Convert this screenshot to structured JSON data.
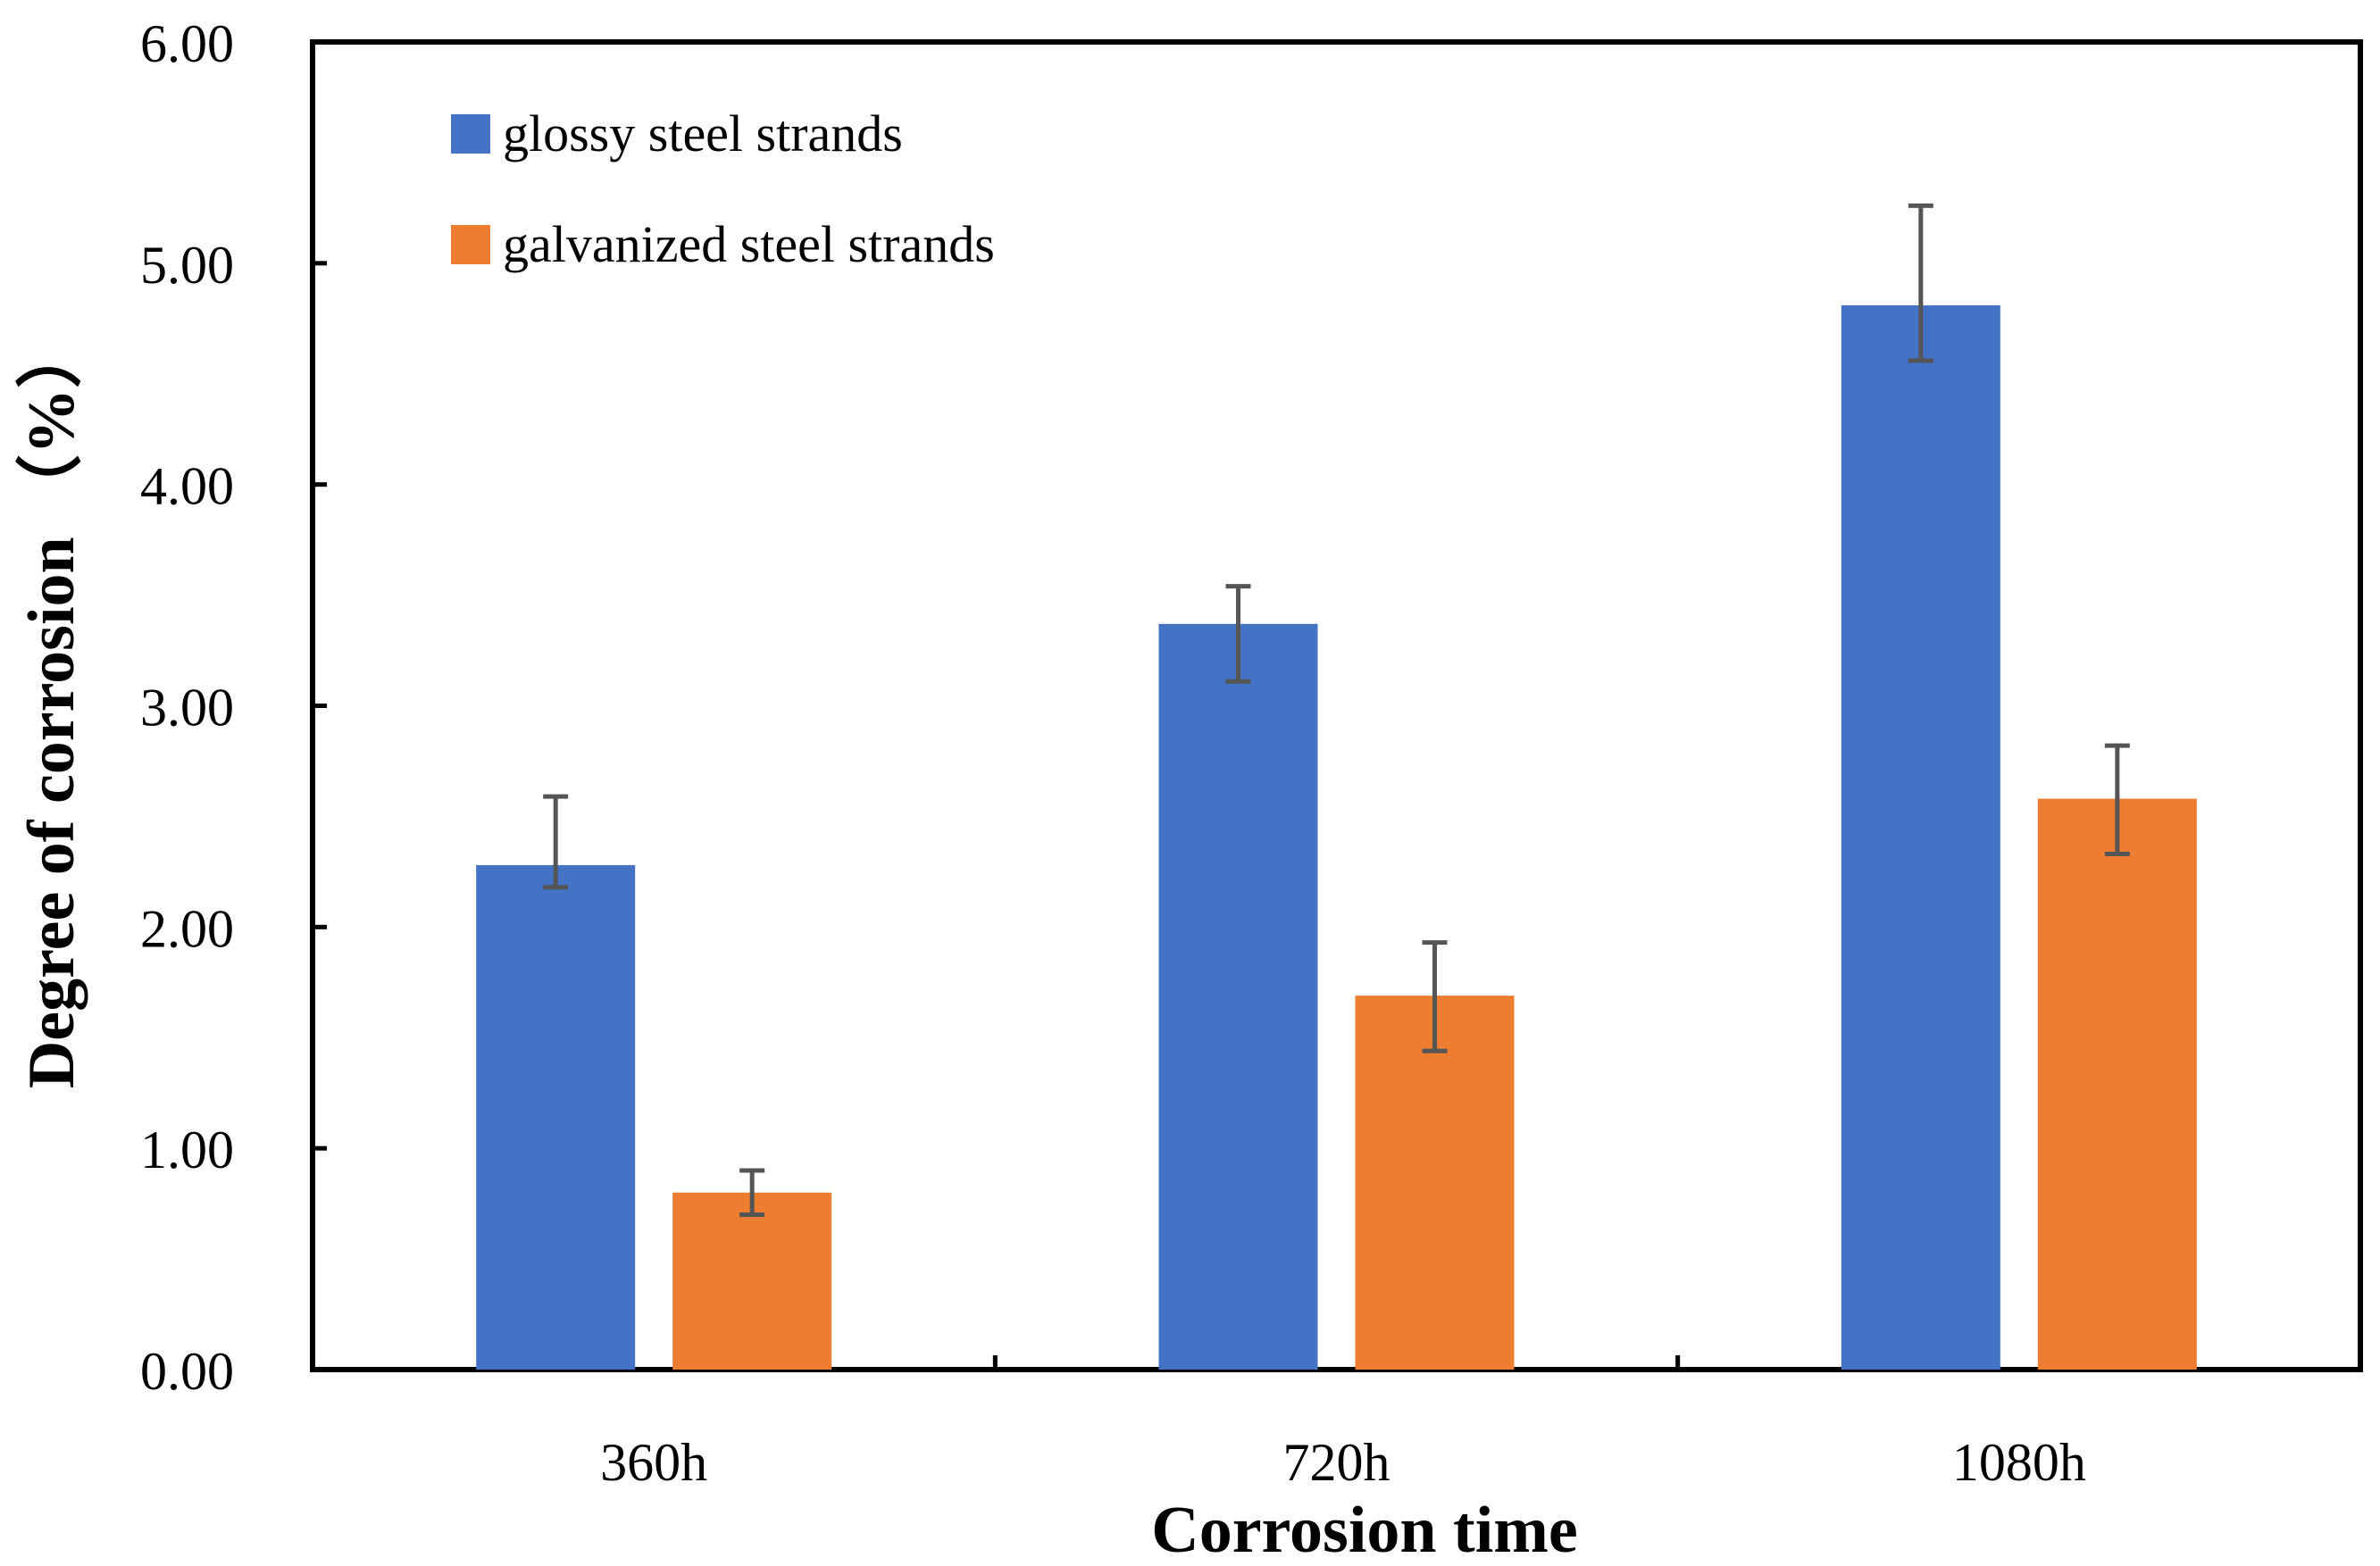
{
  "chart_data": {
    "type": "bar",
    "title": "",
    "xlabel": "Corrosion time",
    "ylabel": "Degree of corrosion （%）",
    "categories": [
      "360h",
      "720h",
      "1080h"
    ],
    "ylim": [
      0,
      6
    ],
    "yticks": [
      0,
      1,
      2,
      3,
      4,
      5,
      6
    ],
    "ytick_labels": [
      "0.00",
      "1.00",
      "2.00",
      "3.00",
      "4.00",
      "5.00",
      "6.00"
    ],
    "grid": false,
    "legend_position": "top-left",
    "error_bars": true,
    "series": [
      {
        "name": "glossy steel strands",
        "color": "#4472C4",
        "values": [
          2.28,
          3.37,
          4.81
        ],
        "error_upper": [
          2.59,
          3.54,
          5.26
        ],
        "error_lower": [
          2.18,
          3.11,
          4.56
        ]
      },
      {
        "name": "galvanized steel strands",
        "color": "#ED7D31",
        "values": [
          0.8,
          1.69,
          2.58
        ],
        "error_upper": [
          0.9,
          1.93,
          2.82
        ],
        "error_lower": [
          0.7,
          1.44,
          2.33
        ]
      }
    ]
  }
}
